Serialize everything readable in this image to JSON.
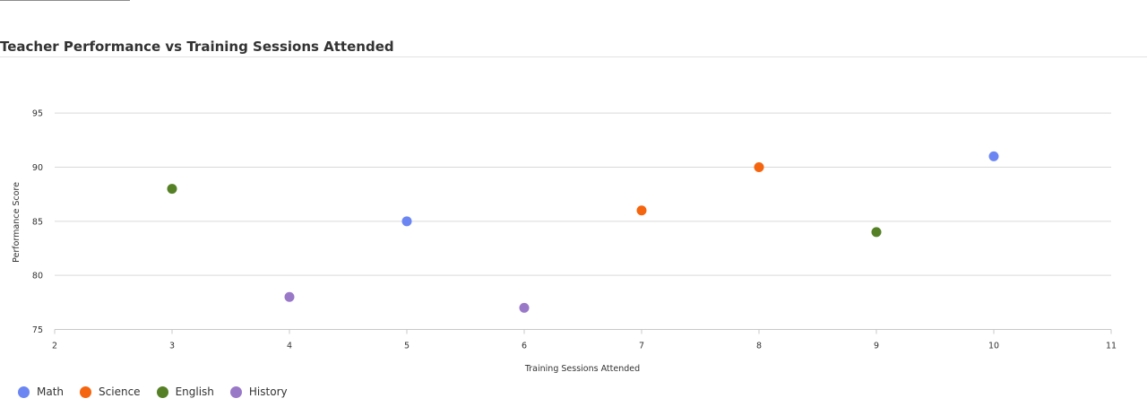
{
  "chart_data": {
    "type": "scatter",
    "title": "Teacher Performance vs Training Sessions Attended",
    "xlabel": "Training Sessions Attended",
    "ylabel": "Performance Score",
    "xlim": [
      2,
      11
    ],
    "ylim": [
      75,
      97
    ],
    "x_ticks": [
      2,
      3,
      4,
      5,
      6,
      7,
      8,
      9,
      10,
      11
    ],
    "y_ticks": [
      75,
      80,
      85,
      90,
      95
    ],
    "grid": true,
    "legend_position": "bottom-left",
    "series": [
      {
        "name": "Math",
        "color": "#6b86f2",
        "points": [
          {
            "x": 5,
            "y": 85
          },
          {
            "x": 10,
            "y": 91
          }
        ]
      },
      {
        "name": "Science",
        "color": "#f5650f",
        "points": [
          {
            "x": 7,
            "y": 86
          },
          {
            "x": 8,
            "y": 90
          }
        ]
      },
      {
        "name": "English",
        "color": "#558025",
        "points": [
          {
            "x": 3,
            "y": 88
          },
          {
            "x": 9,
            "y": 84
          }
        ]
      },
      {
        "name": "History",
        "color": "#9a78c8",
        "points": [
          {
            "x": 4,
            "y": 78
          },
          {
            "x": 6,
            "y": 77
          }
        ]
      }
    ]
  }
}
